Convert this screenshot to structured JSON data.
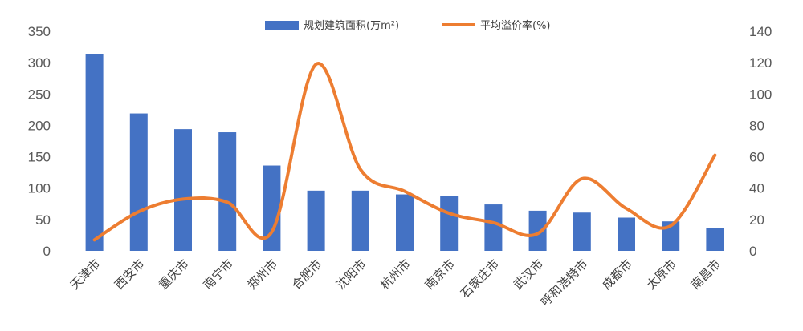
{
  "chart_data": {
    "type": "bar+line",
    "title": "",
    "categories": [
      "天津市",
      "西安市",
      "重庆市",
      "南宁市",
      "郑州市",
      "合肥市",
      "沈阳市",
      "杭州市",
      "南京市",
      "石家庄市",
      "武汉市",
      "呼和浩特市",
      "成都市",
      "太原市",
      "南昌市"
    ],
    "series": [
      {
        "name": "规划建筑面积(万m²)",
        "type": "bar",
        "axis": "left",
        "color": "#4472C4",
        "values": [
          313,
          219,
          194,
          189,
          136,
          96,
          96,
          90,
          88,
          74,
          64,
          61,
          53,
          47,
          36
        ]
      },
      {
        "name": "平均溢价率(%)",
        "type": "line",
        "smooth": true,
        "axis": "right",
        "color": "#ED7D31",
        "values": [
          7,
          25,
          33,
          31,
          12,
          119,
          52,
          38,
          24,
          18,
          11,
          46,
          27,
          16,
          61
        ]
      }
    ],
    "y_left": {
      "min": 0,
      "max": 350,
      "ticks": [
        0,
        50,
        100,
        150,
        200,
        250,
        300,
        350
      ]
    },
    "y_right": {
      "min": 0,
      "max": 140,
      "ticks": [
        0,
        20,
        40,
        60,
        80,
        100,
        120,
        140
      ]
    },
    "grid": false,
    "legend": "top-center"
  }
}
